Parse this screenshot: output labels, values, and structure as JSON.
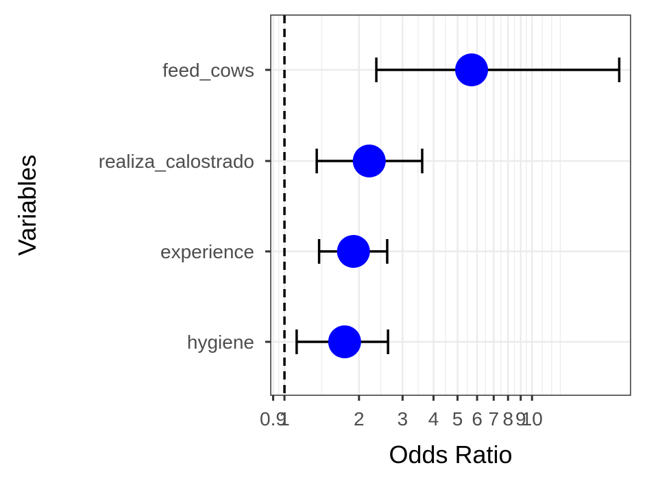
{
  "chart_data": {
    "type": "forest",
    "title": "",
    "xlabel": "Odds Ratio",
    "ylabel": "Variables",
    "x_scale": "log",
    "xlim": [
      0.88,
      25.0
    ],
    "x_ticks": [
      0.9,
      1,
      2,
      3,
      4,
      5,
      6,
      7,
      8,
      9,
      10
    ],
    "x_tick_labels": [
      "0.9",
      "1",
      "2",
      "3",
      "4",
      "5",
      "6",
      "7",
      "8",
      "9",
      "10"
    ],
    "reference_line": 1,
    "categories": [
      "feed_cows",
      "realiza_calostrado",
      "experience",
      "hygiene"
    ],
    "estimates": [
      5.7,
      2.2,
      1.9,
      1.75
    ],
    "ci_lower": [
      2.35,
      1.35,
      1.38,
      1.12
    ],
    "ci_upper": [
      22.5,
      3.6,
      2.6,
      2.62
    ],
    "grid": true,
    "point_color": "#0000ff",
    "errorbar_color": "#000000",
    "panel_border_color": "#333333",
    "grid_color": "#ebebeb"
  }
}
